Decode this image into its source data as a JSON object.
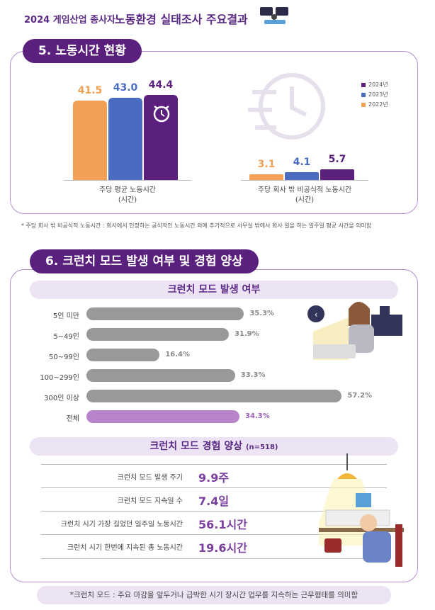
{
  "header": {
    "small_title": "2024 게임산업 종사자",
    "big_title": "노동환경 실태조사 주요결과"
  },
  "section5": {
    "title": "5. 노동시간 현황",
    "legend": [
      {
        "label": "2024년",
        "color": "#5b1f7e"
      },
      {
        "label": "2023년",
        "color": "#4a6cc0"
      },
      {
        "label": "2022년",
        "color": "#f2a154"
      }
    ],
    "chart_data": {
      "type": "bar",
      "categories": [
        "주당 평균 노동시간\n(시간)",
        "주당 회사 밖 비공식적 노동시간\n(시간)"
      ],
      "series": [
        {
          "name": "2022년",
          "values": [
            41.5,
            3.1
          ]
        },
        {
          "name": "2023년",
          "values": [
            43.0,
            4.1
          ]
        },
        {
          "name": "2024년",
          "values": [
            44.4,
            5.7
          ]
        }
      ],
      "value_labels": [
        [
          "41.5",
          "43.0",
          "44.4"
        ],
        [
          "3.1",
          "4.1",
          "5.7"
        ]
      ],
      "ylim": [
        0,
        50
      ]
    },
    "cat1_line1": "주당 평균 노동시간",
    "cat1_line2": "(시간)",
    "cat2_line1": "주당 회사 밖 비공식적 노동시간",
    "cat2_line2": "(시간)",
    "note": "* 주당 회사 밖 비공식적 노동시간 : 회사에서 인정하는 공식적인 노동시간 외에 추가적으로 사무실 밖에서 회사 일을 하는 일주일 평균 시간을 의미함"
  },
  "section6": {
    "title": "6. 크런치 모드 발생 여부 및 경험 양상",
    "occurrence_title": "크런치 모드 발생 여부",
    "chart_data": {
      "type": "bar",
      "orientation": "horizontal",
      "categories": [
        "5인 미만",
        "5~49인",
        "50~99인",
        "100~299인",
        "300인 이상",
        "전체"
      ],
      "values": [
        35.3,
        31.9,
        16.4,
        33.3,
        57.2,
        34.3
      ],
      "value_labels": [
        "35.3%",
        "31.9%",
        "16.4%",
        "33.3%",
        "57.2%",
        "34.3%"
      ],
      "xlim": [
        0,
        60
      ]
    },
    "experience_title": "크런치 모드 경험 양상",
    "experience_n": "(n=518)",
    "rows": [
      {
        "label": "크런치 모드 발생 주기",
        "value": "9.9주"
      },
      {
        "label": "크런치 모드 지속일 수",
        "value": "7.4일"
      },
      {
        "label": "크런치 시기 가장 길었던 일주일 노동시간",
        "value": "56.1시간"
      },
      {
        "label": "크런치 시기 한번에 지속된 총 노동시간",
        "value": "19.6시간"
      }
    ],
    "footnote": "*크런치 모드 : 주요 마감을 앞두거나 급박한 시기 장시간 업무를 지속하는 근무형태를 의미함"
  }
}
